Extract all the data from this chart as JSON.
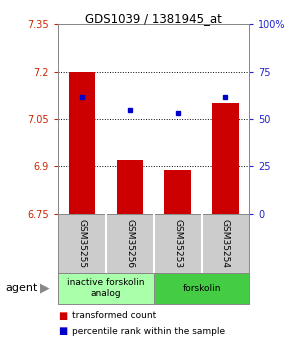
{
  "title": "GDS1039 / 1381945_at",
  "samples": [
    "GSM35255",
    "GSM35256",
    "GSM35253",
    "GSM35254"
  ],
  "bar_values": [
    7.2,
    6.92,
    6.89,
    7.1
  ],
  "bar_base": 6.75,
  "blue_dot_values": [
    7.12,
    7.08,
    7.07,
    7.12
  ],
  "ylim": [
    6.75,
    7.35
  ],
  "yticks_left": [
    7.35,
    7.2,
    7.05,
    6.9,
    6.75
  ],
  "yticks_right_labels": [
    "100%",
    "75",
    "50",
    "25",
    "0"
  ],
  "ytick_right_positions": [
    7.35,
    7.2,
    7.05,
    6.9,
    6.75
  ],
  "hlines": [
    7.2,
    7.05,
    6.9
  ],
  "bar_color": "#cc0000",
  "dot_color": "#0000cc",
  "bar_width": 0.55,
  "groups": [
    {
      "label": "inactive forskolin\nanalog",
      "indices": [
        0,
        1
      ],
      "color": "#aaffaa"
    },
    {
      "label": "forskolin",
      "indices": [
        2,
        3
      ],
      "color": "#44cc44"
    }
  ],
  "agent_label": "agent",
  "legend_red": "transformed count",
  "legend_blue": "percentile rank within the sample",
  "background_color": "#ffffff",
  "plot_bg": "#ffffff",
  "left_tick_color": "#cc2200",
  "right_tick_color": "#2222cc",
  "title_color": "#000000",
  "sample_bg_color": "#cccccc",
  "arrow_color": "#888888"
}
